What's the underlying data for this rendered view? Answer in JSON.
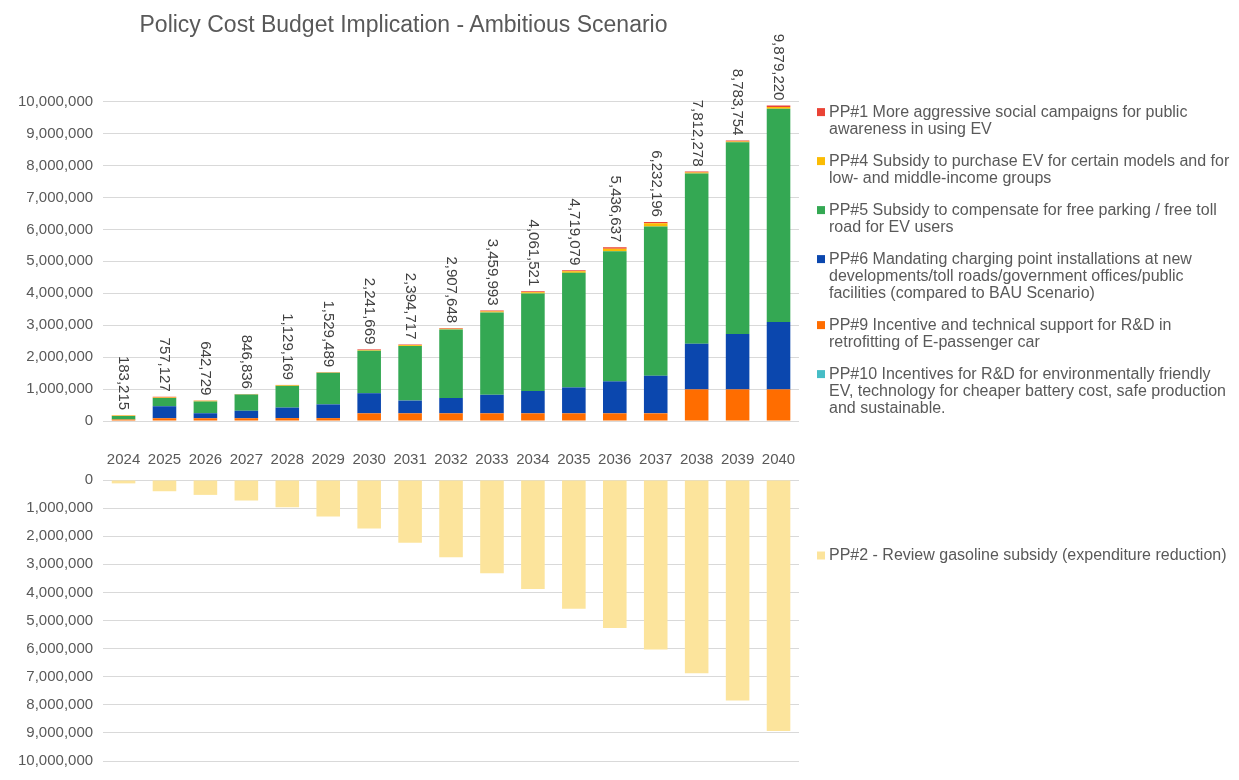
{
  "chart_data": [
    {
      "type": "bar",
      "title": "Policy Cost Budget Implication - Ambitious Scenario",
      "categories": [
        "2024",
        "2025",
        "2026",
        "2027",
        "2028",
        "2029",
        "2030",
        "2031",
        "2032",
        "2033",
        "2034",
        "2035",
        "2036",
        "2037",
        "2038",
        "2039",
        "2040"
      ],
      "stacked": true,
      "series": [
        {
          "name": "PP#10 Incentives for R&D for environmentally friendly EV, technology for cheaper battery cost, safe production and sustainable.",
          "color": "#46bdc6",
          "values": [
            0,
            0,
            0,
            0,
            0,
            0,
            0,
            0,
            0,
            0,
            0,
            0,
            0,
            0,
            0,
            0,
            0
          ]
        },
        {
          "name": "PP#9 Incentive and technical support for R&D in retrofitting of E-passenger car",
          "color": "#ff6d00",
          "values": [
            50000,
            90000,
            90000,
            90000,
            90000,
            90000,
            240000,
            240000,
            240000,
            240000,
            240000,
            240000,
            240000,
            240000,
            990000,
            990000,
            990000
          ]
        },
        {
          "name": "PP#6 Mandating charging point installations at new developments/toll roads/government offices/public facilities (compared to BAU Scenario)",
          "color": "#0b47ae",
          "values": [
            null,
            370000,
            150000,
            230000,
            330000,
            430000,
            630000,
            400000,
            480000,
            580000,
            700000,
            810000,
            1000000,
            1180000,
            1430000,
            1730000,
            2110000
          ]
        },
        {
          "name": "PP#5 Subsidy to compensate for free parking / free toll road for EV users",
          "color": "#34a853",
          "values": [
            103215,
            257127,
            372729,
            506836,
            679169,
            989489,
            1331669,
            1704717,
            2147648,
            2579993,
            3051521,
            3589079,
            4076637,
            4672196,
            5332278,
            6003754,
            6679220
          ]
        },
        {
          "name": "PP#4 Subsidy to purchase EV for certain models and for low- and middle-income groups",
          "color": "#fbbc04",
          "values": [
            20000,
            20000,
            20000,
            10000,
            20000,
            10000,
            20000,
            30000,
            20000,
            30000,
            40000,
            50000,
            80000,
            100000,
            30000,
            30000,
            50000
          ]
        },
        {
          "name": "PP#1 More aggressive social campaigns for public awareness in using EV",
          "color": "#ea4335",
          "values": [
            10000,
            20000,
            10000,
            10000,
            10000,
            10000,
            20000,
            20000,
            20000,
            30000,
            30000,
            30000,
            40000,
            40000,
            30000,
            30000,
            50000
          ]
        }
      ],
      "totals": [
        "183,215",
        "757,127",
        "642,729",
        "846,836",
        "1,129,169",
        "1,529,489",
        "2,241,669",
        "2,394,717",
        "2,907,648",
        "3,459,993",
        "4,061,521",
        "4,719,079",
        "5,436,637",
        "6,232,196",
        "7,812,278",
        "8,783,754",
        "9,879,220"
      ],
      "ylim": [
        0,
        10000000
      ],
      "yticks": [
        0,
        {
          "value": 1000000,
          "label": "1,000,000"
        },
        {
          "value": 2000000,
          "label": "2,000,000"
        },
        {
          "value": 3000000,
          "label": "3,000,000"
        },
        {
          "value": 4000000,
          "label": "4,000,000"
        },
        {
          "value": 5000000,
          "label": "5,000,000"
        },
        {
          "value": 6000000,
          "label": "6,000,000"
        },
        {
          "value": 7000000,
          "label": "7,000,000"
        },
        {
          "value": 8000000,
          "label": "8,000,000"
        },
        {
          "value": 9000000,
          "label": "9,000,000"
        },
        {
          "value": 10000000,
          "label": "10,000,000"
        }
      ],
      "grid": "y",
      "legend": "right",
      "tick_labels": "y"
    },
    {
      "type": "bar",
      "categories": [
        "2024",
        "2025",
        "2026",
        "2027",
        "2028",
        "2029",
        "2030",
        "2031",
        "2032",
        "2033",
        "2034",
        "2035",
        "2036",
        "2037",
        "2038",
        "2039",
        "2040"
      ],
      "series": [
        {
          "name": "PP#2 - Review gasoline subsidy (expenditure reduction)",
          "color": "#fce49c",
          "values": [
            120000,
            400000,
            530000,
            730000,
            970000,
            1300000,
            1730000,
            2230000,
            2750000,
            3320000,
            3880000,
            4580000,
            5270000,
            6030000,
            6880000,
            7850000,
            8930000
          ]
        }
      ],
      "ylim": [
        10000000,
        0
      ],
      "yticks": [
        0,
        {
          "value": 1000000,
          "label": "1,000,000"
        },
        {
          "value": 2000000,
          "label": "2,000,000"
        },
        {
          "value": 3000000,
          "label": "3,000,000"
        },
        {
          "value": 4000000,
          "label": "4,000,000"
        },
        {
          "value": 5000000,
          "label": "5,000,000"
        },
        {
          "value": 6000000,
          "label": "6,000,000"
        },
        {
          "value": 7000000,
          "label": "7,000,000"
        },
        {
          "value": 8000000,
          "label": "8,000,000"
        },
        {
          "value": 9000000,
          "label": "9,000,000"
        },
        {
          "value": 10000000,
          "label": "10,000,000"
        }
      ],
      "grid": "y",
      "legend": "right"
    }
  ]
}
